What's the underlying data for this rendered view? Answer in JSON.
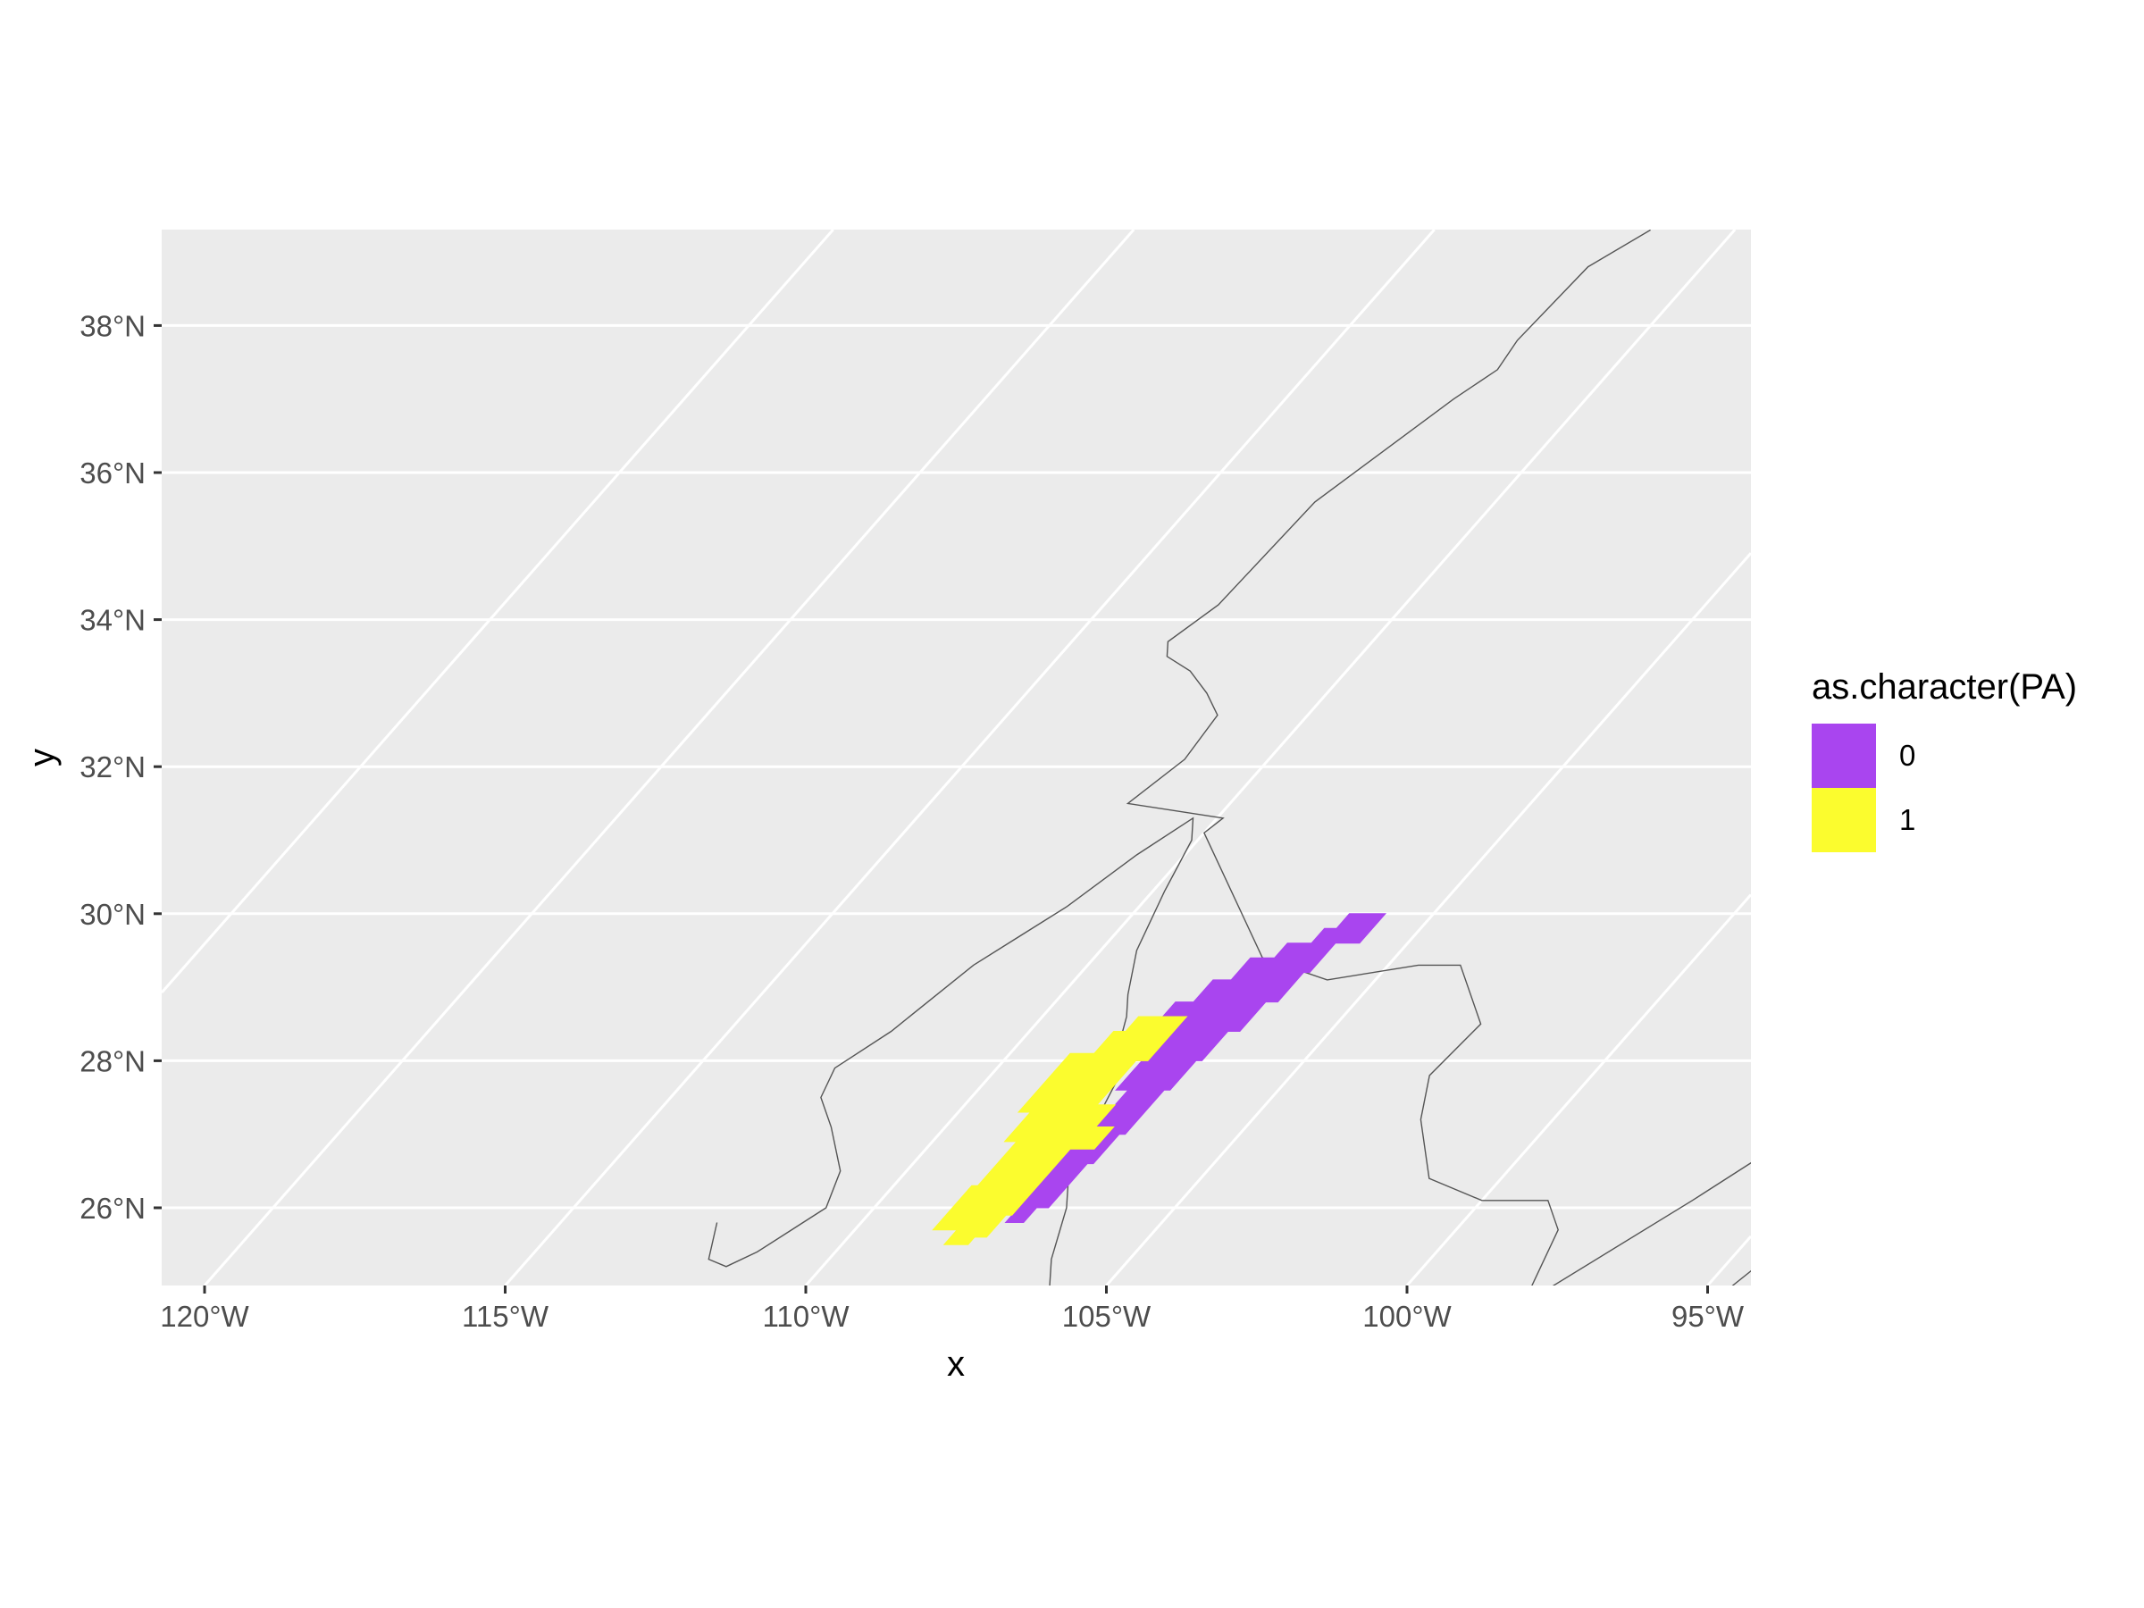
{
  "chart_data": {
    "type": "heatmap",
    "xlabel": "x",
    "ylabel": "y",
    "x_ticks": [
      "120°W",
      "115°W",
      "110°W",
      "105°W",
      "100°W",
      "95°W"
    ],
    "y_ticks": [
      "26°N",
      "28°N",
      "30°N",
      "32°N",
      "34°N",
      "36°N",
      "38°N"
    ],
    "x_tick_values": [
      -120,
      -115,
      -110,
      -105,
      -100,
      -95
    ],
    "y_tick_values": [
      26,
      28,
      30,
      32,
      34,
      36,
      38
    ],
    "xlim": [
      -120.7,
      -94.1
    ],
    "ylim": [
      24.9,
      39.3
    ],
    "grid": true,
    "legend": {
      "title": "as.character(PA)",
      "position": "right",
      "entries": [
        {
          "label": "0",
          "color": "#A945EF"
        },
        {
          "label": "1",
          "color": "#FBFC2E"
        }
      ]
    },
    "series": [
      {
        "name": "0",
        "color": "#A945EF",
        "region_lonlat": [
          [
            -105.8,
            30.0
          ],
          [
            -105.8,
            29.6
          ],
          [
            -106.2,
            29.6
          ],
          [
            -106.2,
            29.2
          ],
          [
            -106.3,
            29.2
          ],
          [
            -106.3,
            28.8
          ],
          [
            -106.5,
            28.8
          ],
          [
            -106.5,
            28.4
          ],
          [
            -106.7,
            28.4
          ],
          [
            -106.7,
            28.0
          ],
          [
            -106.8,
            28.0
          ],
          [
            -106.8,
            27.6
          ],
          [
            -106.9,
            27.6
          ],
          [
            -106.9,
            27.0
          ],
          [
            -107.0,
            27.0
          ],
          [
            -107.0,
            26.6
          ],
          [
            -107.1,
            26.6
          ],
          [
            -107.1,
            26.0
          ],
          [
            -107.3,
            26.0
          ],
          [
            -107.3,
            25.8
          ],
          [
            -107.6,
            25.8
          ],
          [
            -107.6,
            26.8
          ],
          [
            -107.5,
            26.8
          ],
          [
            -107.5,
            27.6
          ],
          [
            -107.7,
            27.6
          ],
          [
            -107.7,
            28.0
          ],
          [
            -107.8,
            28.0
          ],
          [
            -107.8,
            28.4
          ],
          [
            -107.7,
            28.4
          ],
          [
            -107.7,
            28.6
          ],
          [
            -108.0,
            28.6
          ],
          [
            -108.0,
            28.8
          ],
          [
            -107.7,
            28.8
          ],
          [
            -107.7,
            29.1
          ],
          [
            -107.4,
            29.1
          ],
          [
            -107.4,
            29.4
          ],
          [
            -107.0,
            29.4
          ],
          [
            -107.0,
            29.6
          ],
          [
            -106.6,
            29.6
          ],
          [
            -106.6,
            29.8
          ],
          [
            -106.4,
            29.8
          ],
          [
            -106.4,
            30.0
          ]
        ]
      },
      {
        "name": "1",
        "color": "#FBFC2E",
        "region_lonlat": [
          [
            -107.6,
            28.6
          ],
          [
            -107.6,
            28.0
          ],
          [
            -107.8,
            28.0
          ],
          [
            -107.8,
            27.4
          ],
          [
            -107.5,
            27.4
          ],
          [
            -107.5,
            27.1
          ],
          [
            -107.2,
            27.1
          ],
          [
            -107.2,
            26.8
          ],
          [
            -107.6,
            26.8
          ],
          [
            -107.6,
            25.9
          ],
          [
            -107.7,
            25.9
          ],
          [
            -107.7,
            25.6
          ],
          [
            -107.9,
            25.6
          ],
          [
            -107.9,
            25.5
          ],
          [
            -108.3,
            25.5
          ],
          [
            -108.3,
            25.7
          ],
          [
            -108.7,
            25.7
          ],
          [
            -108.7,
            26.3
          ],
          [
            -108.6,
            26.3
          ],
          [
            -108.6,
            26.9
          ],
          [
            -108.8,
            26.9
          ],
          [
            -108.8,
            27.3
          ],
          [
            -109.0,
            27.3
          ],
          [
            -109.0,
            28.1
          ],
          [
            -108.6,
            28.1
          ],
          [
            -108.6,
            28.4
          ],
          [
            -108.4,
            28.4
          ],
          [
            -108.4,
            28.6
          ]
        ]
      }
    ],
    "borders_lonlat": [
      [
        [
          -111.4,
          39.3
        ],
        [
          -111.9,
          38.8
        ],
        [
          -112.0,
          37.8
        ],
        [
          -111.9,
          37.4
        ],
        [
          -112.2,
          37.0
        ],
        [
          -113.0,
          35.6
        ],
        [
          -113.1,
          34.2
        ],
        [
          -113.4,
          33.7
        ],
        [
          -113.2,
          33.5
        ],
        [
          -112.6,
          33.3
        ],
        [
          -112.0,
          33.0
        ],
        [
          -111.5,
          32.7
        ],
        [
          -111.4,
          32.1
        ],
        [
          -111.7,
          31.5
        ],
        [
          -109.9,
          31.3
        ],
        [
          -110.0,
          31.1
        ],
        [
          -107.2,
          29.4
        ],
        [
          -105.8,
          29.1
        ],
        [
          -104.5,
          29.3
        ],
        [
          -103.8,
          29.3
        ],
        [
          -102.6,
          28.5
        ],
        [
          -102.7,
          27.8
        ],
        [
          -102.2,
          27.2
        ],
        [
          -101.2,
          26.4
        ],
        [
          -100.0,
          26.1
        ],
        [
          -98.9,
          26.1
        ],
        [
          -98.3,
          25.7
        ],
        [
          -97.8,
          24.7
        ],
        [
          -97.1,
          24.1
        ],
        [
          -96.9,
          23.9
        ]
      ],
      [
        [
          -112.4,
          25.8
        ],
        [
          -112.0,
          25.3
        ],
        [
          -111.6,
          25.2
        ],
        [
          -111.3,
          25.4
        ],
        [
          -110.8,
          26.0
        ],
        [
          -111.1,
          26.5
        ],
        [
          -111.9,
          27.1
        ],
        [
          -112.5,
          27.5
        ],
        [
          -112.7,
          27.9
        ],
        [
          -112.3,
          28.4
        ],
        [
          -111.9,
          29.3
        ],
        [
          -111.2,
          30.1
        ],
        [
          -110.8,
          30.8
        ],
        [
          -110.4,
          31.3
        ],
        [
          -110.1,
          31.0
        ],
        [
          -109.8,
          30.3
        ],
        [
          -109.4,
          29.5
        ],
        [
          -108.9,
          28.9
        ],
        [
          -108.6,
          28.6
        ],
        [
          -108.3,
          28.2
        ],
        [
          -107.9,
          27.9
        ],
        [
          -107.5,
          27.0
        ],
        [
          -107.3,
          26.5
        ],
        [
          -106.8,
          26.0
        ],
        [
          -106.3,
          25.3
        ],
        [
          -105.8,
          24.8
        ],
        [
          -105.4,
          24.4
        ]
      ],
      [
        [
          -97.6,
          24.9
        ],
        [
          -96.5,
          26.1
        ],
        [
          -96.0,
          26.7
        ],
        [
          -95.2,
          27.4
        ],
        [
          -94.1,
          28.0
        ]
      ],
      [
        [
          -94.1,
          26.0
        ],
        [
          -94.6,
          24.9
        ]
      ]
    ]
  }
}
